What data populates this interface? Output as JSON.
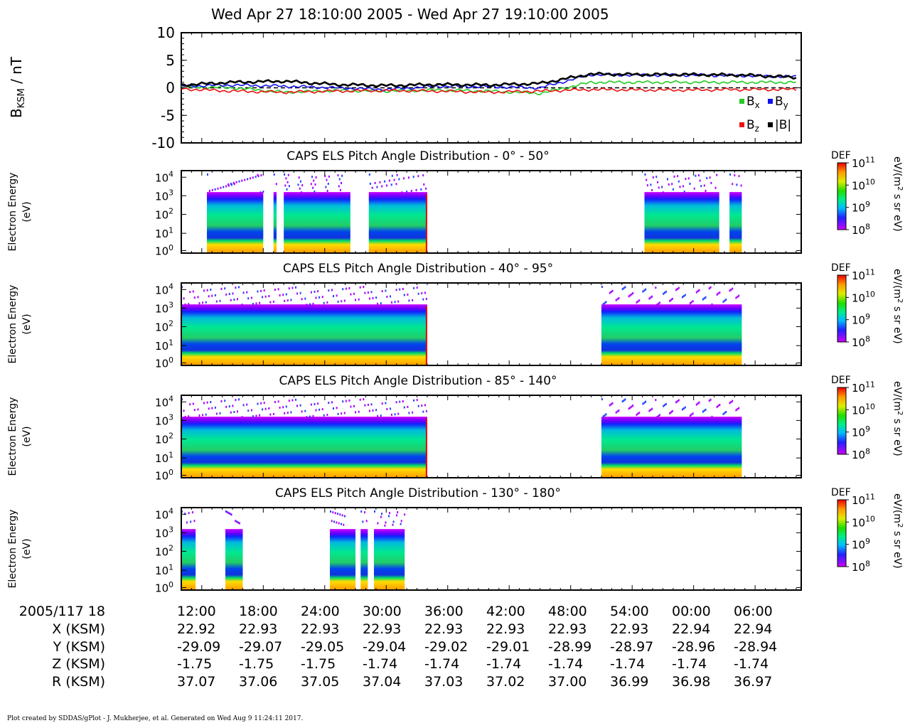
{
  "header": {
    "title": "Wed Apr 27 18:10:00 2005 - Wed Apr 27 19:10:00 2005"
  },
  "footer": {
    "credit": "Plot created by SDDAS/gPlot - J. Mukherjee, et al.  Generated on Wed Aug  9 11:24:11 2017."
  },
  "chart_data": [
    {
      "type": "line",
      "ylabel_main": "B",
      "ylabel_sub": "KSM",
      "ylabel_unit": " / nT",
      "ylim": [
        -10,
        10
      ],
      "yticks": [
        "10",
        "5",
        "0",
        "-5",
        "-10"
      ],
      "ytick_values": [
        10,
        5,
        0,
        -5,
        -10
      ],
      "x": [
        0,
        5,
        10,
        15,
        20,
        25,
        30,
        35,
        40,
        45,
        50,
        55,
        60
      ],
      "series": [
        {
          "name": "Bx",
          "legend_main": "B",
          "legend_sub": "x",
          "color": "#22cc22",
          "values": [
            0.2,
            0.0,
            -0.8,
            -0.5,
            -0.6,
            -0.4,
            -0.6,
            -1.0,
            1.0,
            1.0,
            1.0,
            1.0,
            1.0
          ]
        },
        {
          "name": "By",
          "legend_main": "B",
          "legend_sub": "y",
          "color": "#1111ee",
          "values": [
            0.3,
            0.5,
            0.3,
            0.0,
            -0.3,
            0.3,
            0.2,
            0.0,
            2.4,
            2.3,
            2.3,
            2.2,
            2.0
          ]
        },
        {
          "name": "Bz",
          "legend_main": "B",
          "legend_sub": "z",
          "color": "#ee1111",
          "values": [
            -0.2,
            -0.6,
            -0.8,
            -0.6,
            -0.5,
            -0.6,
            -0.8,
            -0.6,
            -0.3,
            -0.4,
            -0.4,
            -0.3,
            -0.3
          ]
        },
        {
          "name": "|B|",
          "legend_main": "|B|",
          "legend_sub": "",
          "color": "#000000",
          "values": [
            0.5,
            1.0,
            1.2,
            0.6,
            0.4,
            0.6,
            0.5,
            0.8,
            2.5,
            2.4,
            2.4,
            2.3,
            1.9
          ]
        }
      ],
      "zero_line": true
    },
    {
      "type": "heatmap",
      "title": "CAPS ELS Pitch Angle Distribution - 0° - 50°",
      "ylabel": "Electron Energy",
      "yunit": "(eV)",
      "yticks": [
        {
          "base": "10",
          "exp": "4"
        },
        {
          "base": "10",
          "exp": "3"
        },
        {
          "base": "10",
          "exp": "2"
        },
        {
          "base": "10",
          "exp": "1"
        },
        {
          "base": "10",
          "exp": "0"
        }
      ],
      "data_intervals_min": [
        [
          2.5,
          8.0
        ],
        [
          9.0,
          9.3
        ],
        [
          10.0,
          16.5
        ],
        [
          18.3,
          24.0
        ],
        [
          45.2,
          52.5
        ],
        [
          53.5,
          54.7
        ]
      ],
      "colorbar": {
        "label": "DEF",
        "unit_a": "eV/(m",
        "unit_sup": "2",
        "unit_b": " s sr eV)",
        "ticks": [
          {
            "base": "10",
            "exp": "11"
          },
          {
            "base": "10",
            "exp": "10"
          },
          {
            "base": "10",
            "exp": "9"
          },
          {
            "base": "10",
            "exp": "8"
          }
        ]
      }
    },
    {
      "type": "heatmap",
      "title": "CAPS ELS Pitch Angle Distribution - 40° - 95°",
      "ylabel": "Electron Energy",
      "yunit": "(eV)",
      "yticks": [
        {
          "base": "10",
          "exp": "4"
        },
        {
          "base": "10",
          "exp": "3"
        },
        {
          "base": "10",
          "exp": "2"
        },
        {
          "base": "10",
          "exp": "1"
        },
        {
          "base": "10",
          "exp": "0"
        }
      ],
      "data_intervals_min": [
        [
          0.0,
          24.0
        ],
        [
          41.0,
          54.7
        ]
      ],
      "colorbar": {
        "label": "DEF",
        "unit_a": "eV/(m",
        "unit_sup": "2",
        "unit_b": " s sr eV)",
        "ticks": [
          {
            "base": "10",
            "exp": "11"
          },
          {
            "base": "10",
            "exp": "10"
          },
          {
            "base": "10",
            "exp": "9"
          },
          {
            "base": "10",
            "exp": "8"
          }
        ]
      }
    },
    {
      "type": "heatmap",
      "title": "CAPS ELS Pitch Angle Distribution - 85° - 140°",
      "ylabel": "Electron Energy",
      "yunit": "(eV)",
      "yticks": [
        {
          "base": "10",
          "exp": "4"
        },
        {
          "base": "10",
          "exp": "3"
        },
        {
          "base": "10",
          "exp": "2"
        },
        {
          "base": "10",
          "exp": "1"
        },
        {
          "base": "10",
          "exp": "0"
        }
      ],
      "data_intervals_min": [
        [
          0.0,
          24.0
        ],
        [
          41.0,
          54.7
        ]
      ],
      "colorbar": {
        "label": "DEF",
        "unit_a": "eV/(m",
        "unit_sup": "2",
        "unit_b": " s sr eV)",
        "ticks": [
          {
            "base": "10",
            "exp": "11"
          },
          {
            "base": "10",
            "exp": "10"
          },
          {
            "base": "10",
            "exp": "9"
          },
          {
            "base": "10",
            "exp": "8"
          }
        ]
      }
    },
    {
      "type": "heatmap",
      "title": "CAPS ELS Pitch Angle Distribution - 130° - 180°",
      "ylabel": "Electron Energy",
      "yunit": "(eV)",
      "yticks": [
        {
          "base": "10",
          "exp": "4"
        },
        {
          "base": "10",
          "exp": "3"
        },
        {
          "base": "10",
          "exp": "2"
        },
        {
          "base": "10",
          "exp": "1"
        },
        {
          "base": "10",
          "exp": "0"
        }
      ],
      "data_intervals_min": [
        [
          0.0,
          1.4
        ],
        [
          4.3,
          6.0
        ],
        [
          14.5,
          17.0
        ],
        [
          17.5,
          18.2
        ],
        [
          18.8,
          21.8
        ]
      ],
      "colorbar": {
        "label": "DEF",
        "unit_a": "eV/(m",
        "unit_sup": "2",
        "unit_b": " s sr eV)",
        "ticks": [
          {
            "base": "10",
            "exp": "11"
          },
          {
            "base": "10",
            "exp": "10"
          },
          {
            "base": "10",
            "exp": "9"
          },
          {
            "base": "10",
            "exp": "8"
          }
        ]
      }
    }
  ],
  "ephemeris": {
    "date_label": "2005/117 18",
    "times": [
      "12:00",
      "18:00",
      "24:00",
      "30:00",
      "36:00",
      "42:00",
      "48:00",
      "54:00",
      "00:00",
      "06:00"
    ],
    "rows": [
      {
        "label": "X (KSM)",
        "values": [
          "22.92",
          "22.93",
          "22.93",
          "22.93",
          "22.93",
          "22.93",
          "22.93",
          "22.93",
          "22.94",
          "22.94"
        ]
      },
      {
        "label": "Y (KSM)",
        "values": [
          "-29.09",
          "-29.07",
          "-29.05",
          "-29.04",
          "-29.02",
          "-29.01",
          "-28.99",
          "-28.97",
          "-28.96",
          "-28.94"
        ]
      },
      {
        "label": "Z (KSM)",
        "values": [
          "-1.75",
          "-1.75",
          "-1.75",
          "-1.74",
          "-1.74",
          "-1.74",
          "-1.74",
          "-1.74",
          "-1.74",
          "-1.74"
        ]
      },
      {
        "label": "R (KSM)",
        "values": [
          "37.07",
          "37.06",
          "37.05",
          "37.04",
          "37.03",
          "37.02",
          "37.00",
          "36.99",
          "36.98",
          "36.97"
        ]
      }
    ]
  }
}
